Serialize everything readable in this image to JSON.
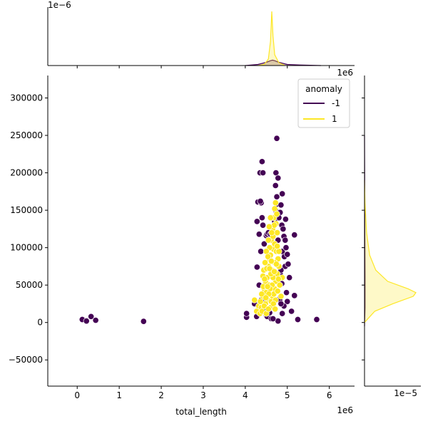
{
  "chart_data": {
    "type": "scatter",
    "xlabel": "total_length",
    "ylabel": "",
    "x_offset_label": "1e6",
    "top_scale_label": "1e−6",
    "right_scale_label": "1e−5",
    "top_right_offset_label": "1e6",
    "xlim": [
      -0.7,
      6.6
    ],
    "ylim": [
      -85000,
      330000
    ],
    "x_ticks": [
      0,
      1,
      2,
      3,
      4,
      5,
      6
    ],
    "y_ticks": [
      -50000,
      0,
      50000,
      100000,
      150000,
      200000,
      250000,
      300000
    ],
    "grid": false,
    "legend": {
      "title": "anomaly",
      "placement": "top-right",
      "entries": [
        "-1",
        "1"
      ]
    },
    "colors": {
      "-1": "#440154",
      "1": "#fde725"
    },
    "series": [
      {
        "name": "-1",
        "points": [
          [
            0.12,
            4000
          ],
          [
            0.22,
            2000
          ],
          [
            0.33,
            8000
          ],
          [
            0.44,
            3000
          ],
          [
            1.58,
            1500
          ],
          [
            4.03,
            7000
          ],
          [
            4.03,
            12000
          ],
          [
            4.22,
            25000
          ],
          [
            4.27,
            8000
          ],
          [
            4.35,
            12000
          ],
          [
            4.38,
            30000
          ],
          [
            4.28,
            74000
          ],
          [
            4.28,
            135000
          ],
          [
            4.3,
            161000
          ],
          [
            4.35,
            200000
          ],
          [
            4.4,
            215000
          ],
          [
            4.38,
            160000
          ],
          [
            4.33,
            118000
          ],
          [
            4.4,
            140000
          ],
          [
            4.42,
            200000
          ],
          [
            4.5,
            116000
          ],
          [
            4.52,
            118000
          ],
          [
            4.55,
            120000
          ],
          [
            4.6,
            118000
          ],
          [
            4.65,
            118000
          ],
          [
            4.73,
            200000
          ],
          [
            4.75,
            246000
          ],
          [
            4.78,
            193000
          ],
          [
            4.72,
            183000
          ],
          [
            4.75,
            168000
          ],
          [
            4.72,
            150000
          ],
          [
            4.75,
            158000
          ],
          [
            4.88,
            172000
          ],
          [
            4.85,
            157000
          ],
          [
            4.83,
            147000
          ],
          [
            4.87,
            130000
          ],
          [
            4.9,
            125000
          ],
          [
            4.92,
            115000
          ],
          [
            4.95,
            110000
          ],
          [
            4.88,
            95000
          ],
          [
            4.93,
            88000
          ],
          [
            4.97,
            100000
          ],
          [
            4.95,
            75000
          ],
          [
            5.02,
            78000
          ],
          [
            5.05,
            60000
          ],
          [
            4.98,
            40000
          ],
          [
            5.0,
            28000
          ],
          [
            4.92,
            22000
          ],
          [
            4.88,
            12000
          ],
          [
            5.1,
            15000
          ],
          [
            5.17,
            36000
          ],
          [
            5.25,
            4000
          ],
          [
            5.17,
            117000
          ],
          [
            5.7,
            4000
          ],
          [
            4.78,
            2000
          ],
          [
            4.5,
            10000
          ],
          [
            4.45,
            17000
          ],
          [
            4.52,
            8000
          ],
          [
            4.4,
            28000
          ],
          [
            4.62,
            5000
          ],
          [
            4.66,
            5000
          ],
          [
            4.58,
            13000
          ],
          [
            4.33,
            50000
          ],
          [
            4.37,
            95000
          ],
          [
            4.42,
            130000
          ],
          [
            4.83,
            65000
          ],
          [
            4.87,
            52000
          ],
          [
            4.96,
            138000
          ],
          [
            5.0,
            91000
          ],
          [
            4.98,
            40000
          ],
          [
            4.8,
            31000
          ],
          [
            4.82,
            30000
          ],
          [
            4.85,
            25000
          ],
          [
            4.36,
            162000
          ],
          [
            4.8,
            140000
          ],
          [
            4.45,
            105000
          ],
          [
            4.7,
            135000
          ],
          [
            4.85,
            70000
          ],
          [
            4.78,
            110000
          ],
          [
            4.32,
            20000
          ]
        ]
      },
      {
        "name": "1",
        "points": [
          [
            4.22,
            30000
          ],
          [
            4.27,
            15000
          ],
          [
            4.32,
            22000
          ],
          [
            4.35,
            12000
          ],
          [
            4.38,
            20000
          ],
          [
            4.4,
            15000
          ],
          [
            4.42,
            35000
          ],
          [
            4.45,
            45000
          ],
          [
            4.48,
            55000
          ],
          [
            4.5,
            40000
          ],
          [
            4.52,
            60000
          ],
          [
            4.55,
            75000
          ],
          [
            4.58,
            85000
          ],
          [
            4.6,
            90000
          ],
          [
            4.62,
            110000
          ],
          [
            4.65,
            125000
          ],
          [
            4.68,
            140000
          ],
          [
            4.7,
            152000
          ],
          [
            4.72,
            160000
          ],
          [
            4.75,
            145000
          ],
          [
            4.67,
            98000
          ],
          [
            4.63,
            70000
          ],
          [
            4.57,
            50000
          ],
          [
            4.53,
            30000
          ],
          [
            4.48,
            25000
          ],
          [
            4.6,
            20000
          ],
          [
            4.65,
            35000
          ],
          [
            4.7,
            45000
          ],
          [
            4.73,
            55000
          ],
          [
            4.76,
            65000
          ],
          [
            4.8,
            75000
          ],
          [
            4.78,
            85000
          ],
          [
            4.74,
            95000
          ],
          [
            4.7,
            105000
          ],
          [
            4.66,
            115000
          ],
          [
            4.58,
            100000
          ],
          [
            4.55,
            110000
          ],
          [
            4.5,
            95000
          ],
          [
            4.47,
            80000
          ],
          [
            4.44,
            70000
          ],
          [
            4.42,
            62000
          ],
          [
            4.45,
            22000
          ],
          [
            4.5,
            12000
          ],
          [
            4.55,
            18000
          ],
          [
            4.62,
            28000
          ],
          [
            4.68,
            38000
          ],
          [
            4.72,
            30000
          ],
          [
            4.77,
            42000
          ],
          [
            4.82,
            50000
          ],
          [
            4.85,
            35000
          ],
          [
            4.88,
            60000
          ],
          [
            4.8,
            95000
          ],
          [
            4.76,
            120000
          ],
          [
            4.73,
            132000
          ],
          [
            4.69,
            130000
          ],
          [
            4.63,
            120000
          ],
          [
            4.6,
            140000
          ],
          [
            4.57,
            128000
          ],
          [
            4.54,
            88000
          ],
          [
            4.51,
            72000
          ],
          [
            4.46,
            58000
          ],
          [
            4.43,
            48000
          ],
          [
            4.39,
            38000
          ],
          [
            4.36,
            28000
          ],
          [
            4.66,
            60000
          ],
          [
            4.64,
            50000
          ],
          [
            4.7,
            80000
          ],
          [
            4.74,
            78000
          ],
          [
            4.61,
            65000
          ],
          [
            4.59,
            45000
          ],
          [
            4.56,
            38000
          ],
          [
            4.67,
            25000
          ],
          [
            4.71,
            18000
          ],
          [
            4.49,
            33000
          ],
          [
            4.53,
            48000
          ],
          [
            4.62,
            82000
          ],
          [
            4.58,
            72000
          ],
          [
            4.69,
            68000
          ],
          [
            4.76,
            102000
          ],
          [
            4.79,
            58000
          ]
        ]
      }
    ],
    "marginals": {
      "top": {
        "axis": "total_length",
        "curves": [
          {
            "name": "-1",
            "points": [
              [
                4.0,
                0.0
              ],
              [
                4.3,
                0.02
              ],
              [
                4.5,
                0.06
              ],
              [
                4.6,
                0.09
              ],
              [
                4.65,
                0.1
              ],
              [
                4.7,
                0.09
              ],
              [
                4.8,
                0.06
              ],
              [
                5.0,
                0.02
              ],
              [
                5.3,
                0.01
              ],
              [
                5.8,
                0.0
              ]
            ]
          },
          {
            "name": "1",
            "points": [
              [
                4.3,
                0.0
              ],
              [
                4.45,
                0.02
              ],
              [
                4.55,
                0.12
              ],
              [
                4.6,
                0.45
              ],
              [
                4.63,
                1.0
              ],
              [
                4.66,
                0.55
              ],
              [
                4.7,
                0.2
              ],
              [
                4.8,
                0.05
              ],
              [
                4.95,
                0.0
              ]
            ]
          }
        ]
      },
      "right": {
        "axis": "value",
        "curves": [
          {
            "name": "-1",
            "points": [
              [
                -5000,
                0.0
              ],
              [
                20000,
                0.01
              ],
              [
                60000,
                0.01
              ],
              [
                120000,
                0.005
              ],
              [
                200000,
                0.003
              ],
              [
                250000,
                0.0
              ]
            ]
          },
          {
            "name": "1",
            "points": [
              [
                0,
                0.0
              ],
              [
                15000,
                0.2
              ],
              [
                25000,
                0.55
              ],
              [
                35000,
                0.95
              ],
              [
                40000,
                1.0
              ],
              [
                45000,
                0.85
              ],
              [
                55000,
                0.45
              ],
              [
                70000,
                0.22
              ],
              [
                90000,
                0.1
              ],
              [
                120000,
                0.04
              ],
              [
                160000,
                0.01
              ],
              [
                190000,
                0.0
              ]
            ]
          }
        ]
      }
    }
  }
}
